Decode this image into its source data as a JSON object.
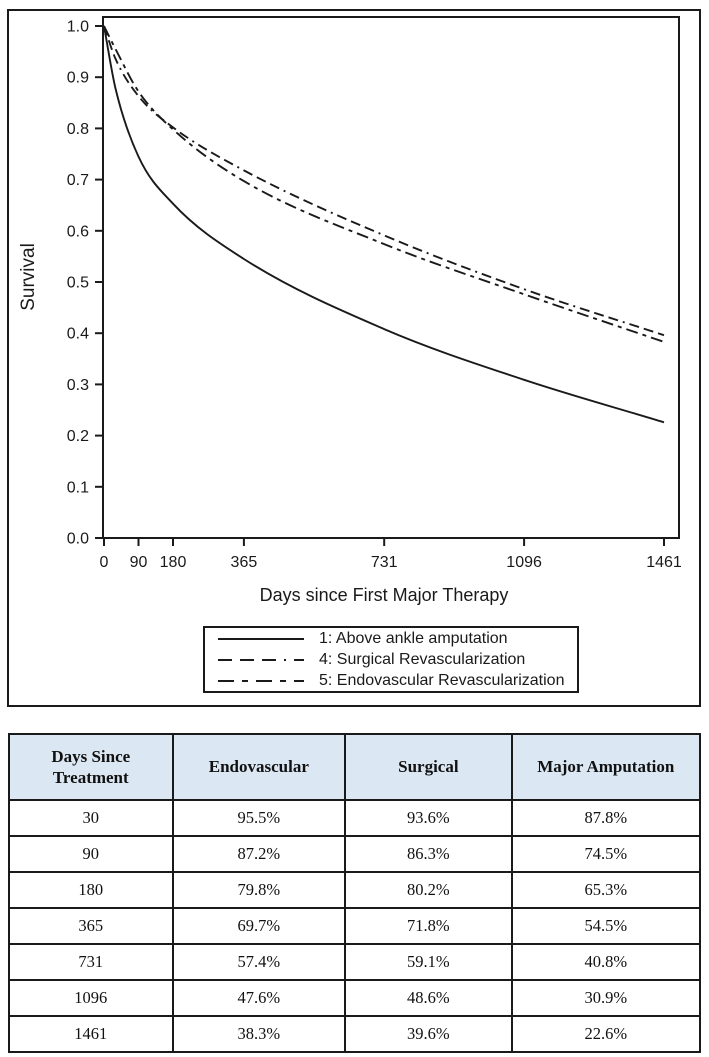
{
  "chart_data": {
    "type": "line",
    "title": "",
    "xlabel": "Days since First Major Therapy",
    "ylabel": "Survival",
    "xlim": [
      0,
      1461
    ],
    "ylim": [
      0.0,
      1.0
    ],
    "x_ticks": [
      0,
      90,
      180,
      365,
      731,
      1096,
      1461
    ],
    "y_ticks": [
      "0.0",
      "0.1",
      "0.2",
      "0.3",
      "0.4",
      "0.5",
      "0.6",
      "0.7",
      "0.8",
      "0.9",
      "1.0"
    ],
    "grid": false,
    "legend_position": "bottom-center-boxed",
    "series": [
      {
        "name": "1: Above ankle amputation",
        "line_style": "solid",
        "x": [
          0,
          30,
          90,
          180,
          365,
          731,
          1096,
          1461
        ],
        "y": [
          1.0,
          0.878,
          0.745,
          0.653,
          0.545,
          0.408,
          0.309,
          0.226
        ]
      },
      {
        "name": "4: Surgical Revascularization",
        "line_style": "dashed",
        "x": [
          0,
          30,
          90,
          180,
          365,
          731,
          1096,
          1461
        ],
        "y": [
          1.0,
          0.936,
          0.863,
          0.802,
          0.718,
          0.591,
          0.486,
          0.396
        ]
      },
      {
        "name": "5: Endovascular Revascularization",
        "line_style": "dash-dot",
        "x": [
          0,
          30,
          90,
          180,
          365,
          731,
          1096,
          1461
        ],
        "y": [
          1.0,
          0.955,
          0.872,
          0.798,
          0.697,
          0.574,
          0.476,
          0.383
        ]
      }
    ]
  },
  "table": {
    "header_bg": "#dbe8f4",
    "headers": [
      "Days Since Treatment",
      "Endovascular",
      "Surgical",
      "Major Amputation"
    ],
    "rows": [
      [
        "30",
        "95.5%",
        "93.6%",
        "87.8%"
      ],
      [
        "90",
        "87.2%",
        "86.3%",
        "74.5%"
      ],
      [
        "180",
        "79.8%",
        "80.2%",
        "65.3%"
      ],
      [
        "365",
        "69.7%",
        "71.8%",
        "54.5%"
      ],
      [
        "731",
        "57.4%",
        "59.1%",
        "40.8%"
      ],
      [
        "1096",
        "47.6%",
        "48.6%",
        "30.9%"
      ],
      [
        "1461",
        "38.3%",
        "39.6%",
        "22.6%"
      ]
    ]
  },
  "colors": {
    "line": "#1a1a1a",
    "text": "#1a1a1a"
  }
}
